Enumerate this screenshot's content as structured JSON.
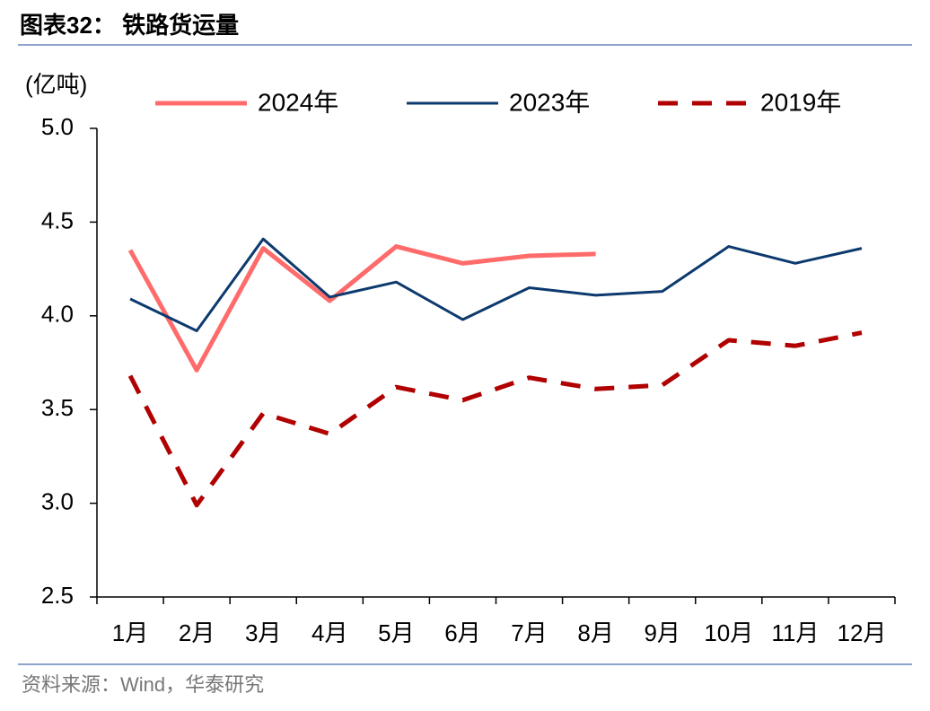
{
  "chart_data": {
    "type": "line",
    "title": "图表32： 铁路货运量",
    "y_label": "(亿吨)",
    "source": "资料来源：Wind，华泰研究",
    "categories": [
      "1月",
      "2月",
      "3月",
      "4月",
      "5月",
      "6月",
      "7月",
      "8月",
      "9月",
      "10月",
      "11月",
      "12月"
    ],
    "series": [
      {
        "name": "2024年",
        "color": "#ff6b6b",
        "dash": false,
        "values": [
          4.35,
          3.71,
          4.36,
          4.08,
          4.37,
          4.28,
          4.32,
          4.33,
          null,
          null,
          null,
          null
        ]
      },
      {
        "name": "2023年",
        "color": "#0d3a6e",
        "dash": false,
        "values": [
          4.09,
          3.92,
          4.41,
          4.1,
          4.18,
          3.98,
          4.15,
          4.11,
          4.13,
          4.37,
          4.28,
          4.36
        ]
      },
      {
        "name": "2019年",
        "color": "#b00000",
        "dash": true,
        "values": [
          3.68,
          2.99,
          3.48,
          3.37,
          3.62,
          3.55,
          3.67,
          3.61,
          3.63,
          3.87,
          3.84,
          3.91
        ]
      }
    ],
    "ylim": [
      2.5,
      5.0
    ],
    "yticks": [
      {
        "value": 2.5,
        "label": "2.5"
      },
      {
        "value": 3,
        "label": "3.0"
      },
      {
        "value": 3.5,
        "label": "3.5"
      },
      {
        "value": 4,
        "label": "4.0"
      },
      {
        "value": 4.5,
        "label": "4.5"
      },
      {
        "value": 5,
        "label": "5.0"
      }
    ],
    "legend": "top"
  }
}
